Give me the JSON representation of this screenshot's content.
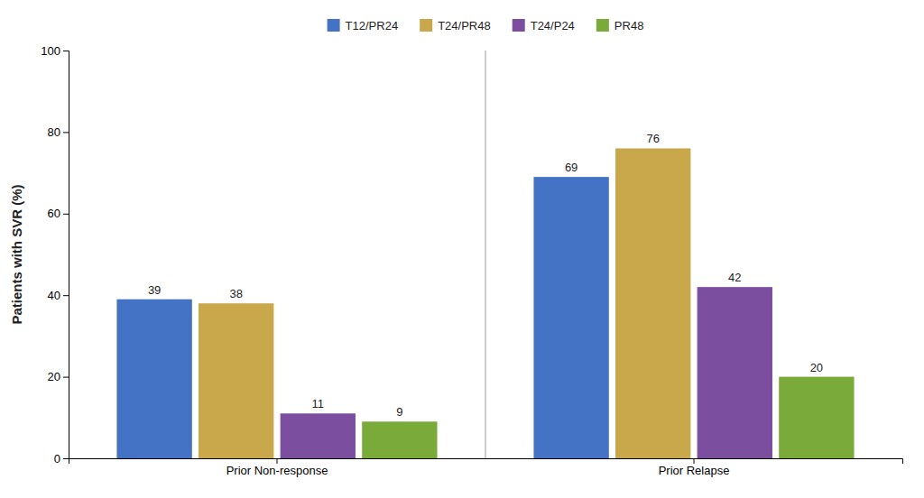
{
  "chart_data": {
    "type": "bar",
    "categories": [
      "Prior Non-response",
      "Prior Relapse"
    ],
    "series": [
      {
        "name": "T12/PR24",
        "color": "#4472C4",
        "values": [
          39,
          69
        ]
      },
      {
        "name": "T24/PR48",
        "color": "#C9A84C",
        "values": [
          38,
          76
        ]
      },
      {
        "name": "T24/P24",
        "color": "#7B4EA0",
        "values": [
          11,
          42
        ]
      },
      {
        "name": "PR48",
        "color": "#7AAB3A",
        "values": [
          9,
          20
        ]
      }
    ],
    "ylabel": "Patients with SVR (%)",
    "ylim": [
      0,
      100
    ],
    "yticks": [
      0,
      20,
      40,
      60,
      80,
      100
    ],
    "grid": false,
    "legend": "top",
    "data_labels": true
  }
}
